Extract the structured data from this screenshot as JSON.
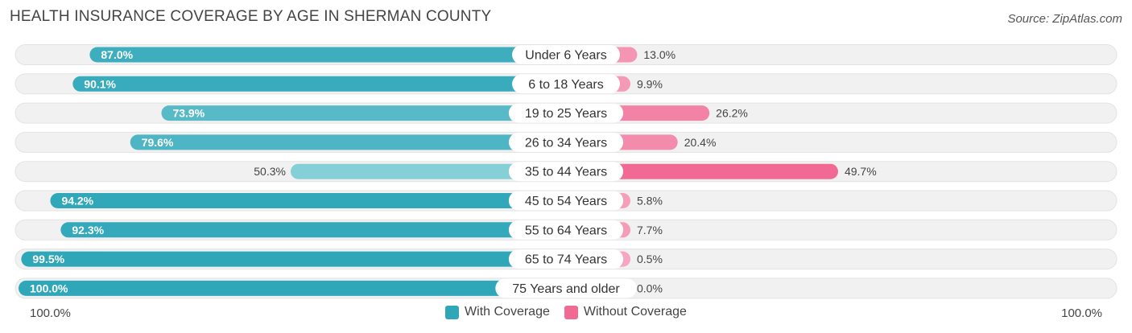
{
  "header": {
    "title": "HEALTH INSURANCE COVERAGE BY AGE IN SHERMAN COUNTY",
    "source": "Source: ZipAtlas.com"
  },
  "axis": {
    "left_label": "100.0%",
    "right_label": "100.0%"
  },
  "legend": {
    "with_label": "With Coverage",
    "without_label": "Without Coverage"
  },
  "colors": {
    "with_strong": "#2fa7b9",
    "with_light": "#86cfd7",
    "without_strong": "#f06a94",
    "without_light": "#f6a7c0",
    "track": "#f1f1f1"
  },
  "chart_data": {
    "type": "bar",
    "orientation": "horizontal-diverging",
    "title": "HEALTH INSURANCE COVERAGE BY AGE IN SHERMAN COUNTY",
    "categories": [
      "Under 6 Years",
      "6 to 18 Years",
      "19 to 25 Years",
      "26 to 34 Years",
      "35 to 44 Years",
      "45 to 54 Years",
      "55 to 64 Years",
      "65 to 74 Years",
      "75 Years and older"
    ],
    "series": [
      {
        "name": "With Coverage",
        "values": [
          87.0,
          90.1,
          73.9,
          79.6,
          50.3,
          94.2,
          92.3,
          99.5,
          100.0
        ],
        "labels": [
          "87.0%",
          "90.1%",
          "73.9%",
          "79.6%",
          "50.3%",
          "94.2%",
          "92.3%",
          "99.5%",
          "100.0%"
        ]
      },
      {
        "name": "Without Coverage",
        "values": [
          13.0,
          9.9,
          26.2,
          20.4,
          49.7,
          5.8,
          7.7,
          0.5,
          0.0
        ],
        "labels": [
          "13.0%",
          "9.9%",
          "26.2%",
          "20.4%",
          "49.7%",
          "5.8%",
          "7.7%",
          "0.5%",
          "0.0%"
        ]
      }
    ],
    "xlim": [
      -100,
      100
    ],
    "legend_position": "bottom-center"
  }
}
